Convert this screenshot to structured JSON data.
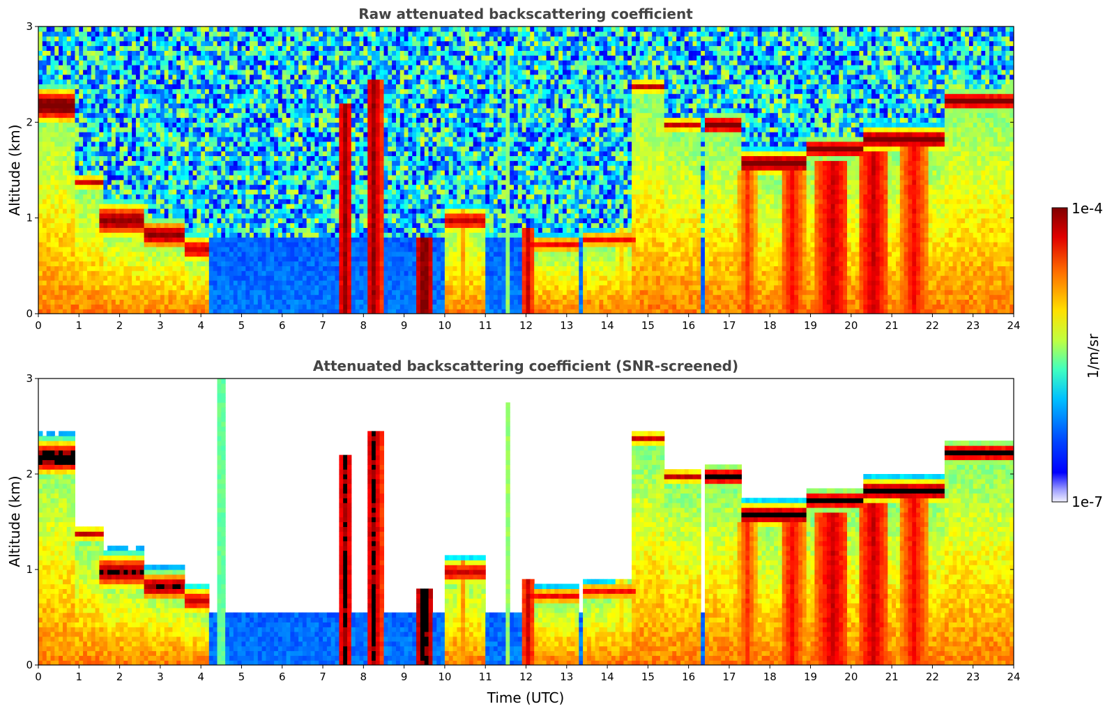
{
  "chart_data": [
    {
      "type": "heatmap",
      "title": "Raw attenuated backscattering coefficient",
      "xlabel": "",
      "ylabel": "Altitude (km)",
      "xlim": [
        0,
        24
      ],
      "ylim": [
        0,
        3
      ],
      "xticks": [
        "0",
        "1",
        "2",
        "3",
        "4",
        "5",
        "6",
        "7",
        "8",
        "9",
        "10",
        "11",
        "12",
        "13",
        "14",
        "15",
        "16",
        "17",
        "18",
        "19",
        "20",
        "21",
        "22",
        "23",
        "24"
      ],
      "yticks": [
        "0",
        "1",
        "2",
        "3"
      ],
      "screened": false,
      "noise_shows_everywhere": true,
      "layers": [
        {
          "t0": 0.0,
          "t1": 0.8,
          "alt": 2.15,
          "thick": 0.22,
          "peak": 1.0
        },
        {
          "t0": 0.8,
          "t1": 1.6,
          "alt": 1.35,
          "thick": 0.08,
          "peak": 0.9
        },
        {
          "t0": 1.5,
          "t1": 2.6,
          "alt": 0.95,
          "thick": 0.22,
          "peak": 0.95
        },
        {
          "t0": 2.6,
          "t1": 3.6,
          "alt": 0.8,
          "thick": 0.18,
          "peak": 0.95
        },
        {
          "t0": 3.6,
          "t1": 4.2,
          "alt": 0.65,
          "thick": 0.16,
          "peak": 0.9
        },
        {
          "t0": 9.9,
          "t1": 10.9,
          "alt": 0.95,
          "thick": 0.15,
          "peak": 0.9
        },
        {
          "t0": 12.0,
          "t1": 13.2,
          "alt": 0.7,
          "thick": 0.1,
          "peak": 0.85
        },
        {
          "t0": 13.3,
          "t1": 14.6,
          "alt": 0.75,
          "thick": 0.1,
          "peak": 0.85
        },
        {
          "t0": 14.5,
          "t1": 15.3,
          "alt": 2.35,
          "thick": 0.08,
          "peak": 0.9
        },
        {
          "t0": 15.3,
          "t1": 16.2,
          "alt": 1.95,
          "thick": 0.08,
          "peak": 0.9
        },
        {
          "t0": 16.3,
          "t1": 17.2,
          "alt": 1.95,
          "thick": 0.12,
          "peak": 1.0
        },
        {
          "t0": 17.2,
          "t1": 18.8,
          "alt": 1.55,
          "thick": 0.14,
          "peak": 1.0
        },
        {
          "t0": 18.8,
          "t1": 20.3,
          "alt": 1.7,
          "thick": 0.12,
          "peak": 1.0
        },
        {
          "t0": 20.3,
          "t1": 22.3,
          "alt": 1.8,
          "thick": 0.14,
          "peak": 1.0
        },
        {
          "t0": 22.3,
          "t1": 24.0,
          "alt": 2.2,
          "thick": 0.12,
          "peak": 1.0
        }
      ],
      "columns": [
        {
          "t": 7.5,
          "w": 0.35,
          "top": 2.2,
          "peak": 0.95
        },
        {
          "t": 8.2,
          "w": 0.4,
          "top": 2.4,
          "peak": 0.95
        },
        {
          "t": 9.45,
          "w": 0.45,
          "top": 0.8,
          "peak": 1.0
        },
        {
          "t": 10.4,
          "w": 0.25,
          "top": 1.1,
          "peak": 0.7
        },
        {
          "t": 11.5,
          "w": 0.15,
          "top": 2.7,
          "peak": 0.5
        },
        {
          "t": 12.0,
          "w": 0.3,
          "top": 0.9,
          "peak": 0.9
        },
        {
          "t": 14.3,
          "w": 0.4,
          "top": 0.9,
          "peak": 0.65
        },
        {
          "t": 17.4,
          "w": 0.5,
          "top": 1.5,
          "peak": 0.8
        },
        {
          "t": 18.5,
          "w": 0.6,
          "top": 1.5,
          "peak": 0.85
        },
        {
          "t": 19.5,
          "w": 0.8,
          "top": 1.6,
          "peak": 0.9
        },
        {
          "t": 20.5,
          "w": 0.7,
          "top": 1.7,
          "peak": 0.9
        },
        {
          "t": 21.5,
          "w": 0.7,
          "top": 1.8,
          "peak": 0.85
        }
      ]
    },
    {
      "type": "heatmap",
      "title": "Attenuated backscattering coefficient (SNR-screened)",
      "xlabel": "Time (UTC)",
      "ylabel": "Altitude (km)",
      "xlim": [
        0,
        24
      ],
      "ylim": [
        0,
        3
      ],
      "xticks": [
        "0",
        "1",
        "2",
        "3",
        "4",
        "5",
        "6",
        "7",
        "8",
        "9",
        "10",
        "11",
        "12",
        "13",
        "14",
        "15",
        "16",
        "17",
        "18",
        "19",
        "20",
        "21",
        "22",
        "23",
        "24"
      ],
      "yticks": [
        "0",
        "1",
        "2",
        "3"
      ],
      "screened": true,
      "noise_shows_everywhere": false,
      "layers": [
        {
          "t0": 0.0,
          "t1": 0.8,
          "alt": 2.15,
          "thick": 0.22,
          "peak": 1.0
        },
        {
          "t0": 0.8,
          "t1": 1.6,
          "alt": 1.35,
          "thick": 0.08,
          "peak": 0.9
        },
        {
          "t0": 1.5,
          "t1": 2.6,
          "alt": 0.95,
          "thick": 0.22,
          "peak": 0.95
        },
        {
          "t0": 2.6,
          "t1": 3.6,
          "alt": 0.8,
          "thick": 0.18,
          "peak": 0.95
        },
        {
          "t0": 3.6,
          "t1": 4.2,
          "alt": 0.65,
          "thick": 0.16,
          "peak": 0.9
        },
        {
          "t0": 9.9,
          "t1": 10.9,
          "alt": 0.95,
          "thick": 0.15,
          "peak": 0.9
        },
        {
          "t0": 12.0,
          "t1": 13.2,
          "alt": 0.7,
          "thick": 0.1,
          "peak": 0.85
        },
        {
          "t0": 13.3,
          "t1": 14.6,
          "alt": 0.75,
          "thick": 0.1,
          "peak": 0.85
        },
        {
          "t0": 14.5,
          "t1": 15.3,
          "alt": 2.35,
          "thick": 0.08,
          "peak": 0.9
        },
        {
          "t0": 15.3,
          "t1": 16.2,
          "alt": 1.95,
          "thick": 0.08,
          "peak": 0.9
        },
        {
          "t0": 16.3,
          "t1": 17.2,
          "alt": 1.95,
          "thick": 0.12,
          "peak": 1.0
        },
        {
          "t0": 17.2,
          "t1": 18.8,
          "alt": 1.55,
          "thick": 0.14,
          "peak": 1.0
        },
        {
          "t0": 18.8,
          "t1": 20.3,
          "alt": 1.7,
          "thick": 0.12,
          "peak": 1.0
        },
        {
          "t0": 20.3,
          "t1": 22.3,
          "alt": 1.8,
          "thick": 0.14,
          "peak": 1.0
        },
        {
          "t0": 22.3,
          "t1": 24.0,
          "alt": 2.2,
          "thick": 0.12,
          "peak": 1.0
        }
      ],
      "columns": [
        {
          "t": 4.45,
          "w": 0.15,
          "top": 3.0,
          "peak": 0.55
        },
        {
          "t": 7.5,
          "w": 0.35,
          "top": 2.2,
          "peak": 0.95
        },
        {
          "t": 8.2,
          "w": 0.4,
          "top": 2.4,
          "peak": 0.95
        },
        {
          "t": 9.45,
          "w": 0.45,
          "top": 0.8,
          "peak": 1.0
        },
        {
          "t": 10.4,
          "w": 0.25,
          "top": 1.1,
          "peak": 0.7
        },
        {
          "t": 11.5,
          "w": 0.15,
          "top": 2.7,
          "peak": 0.5
        },
        {
          "t": 12.0,
          "w": 0.3,
          "top": 0.9,
          "peak": 0.9
        },
        {
          "t": 14.3,
          "w": 0.4,
          "top": 0.9,
          "peak": 0.65
        },
        {
          "t": 17.4,
          "w": 0.5,
          "top": 1.5,
          "peak": 0.8
        },
        {
          "t": 18.5,
          "w": 0.6,
          "top": 1.5,
          "peak": 0.85
        },
        {
          "t": 19.5,
          "w": 0.8,
          "top": 1.6,
          "peak": 0.9
        },
        {
          "t": 20.5,
          "w": 0.7,
          "top": 1.7,
          "peak": 0.9
        },
        {
          "t": 21.5,
          "w": 0.7,
          "top": 1.8,
          "peak": 0.85
        }
      ],
      "cloud_peaks_shown_black": true
    }
  ],
  "colorbar": {
    "label": "1/m/sr",
    "max_label": "1e-4",
    "min_label": "1e-7",
    "range": [
      1e-07,
      0.0001
    ],
    "colormap": "jet",
    "log_scale": true
  },
  "colors": {
    "screened_peak": "#000000",
    "background": "#ffffff",
    "title_text": "#444444"
  }
}
